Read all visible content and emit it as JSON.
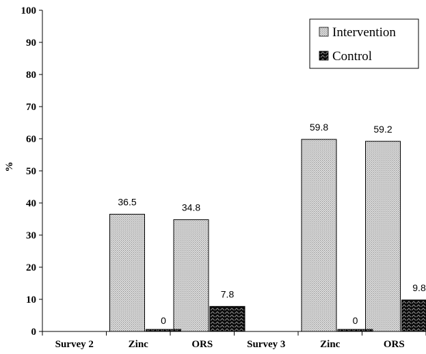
{
  "chart_data": {
    "type": "bar",
    "categories": [
      "Survey 2",
      "Zinc",
      "ORS",
      "Survey 3",
      "Zinc",
      "ORS"
    ],
    "series": [
      {
        "name": "Intervention",
        "values": [
          null,
          36.5,
          34.8,
          null,
          59.8,
          59.2
        ]
      },
      {
        "name": "Control",
        "values": [
          null,
          0,
          7.8,
          null,
          0,
          9.8
        ]
      }
    ],
    "data_labels": {
      "Intervention": [
        "",
        "36.5",
        "34.8",
        "",
        "59.8",
        "59.2"
      ],
      "Control": [
        "",
        "0",
        "7.8",
        "",
        "0",
        "9.8"
      ]
    },
    "title": "",
    "xlabel": "",
    "ylabel": "%",
    "ylim": [
      0,
      100
    ],
    "yticks": [
      0,
      10,
      20,
      30,
      40,
      50,
      60,
      70,
      80,
      90,
      100
    ],
    "grid": false,
    "legend_position": "top-right",
    "colors": {
      "Intervention": "#c8c8c8",
      "Control": "#111111"
    }
  }
}
